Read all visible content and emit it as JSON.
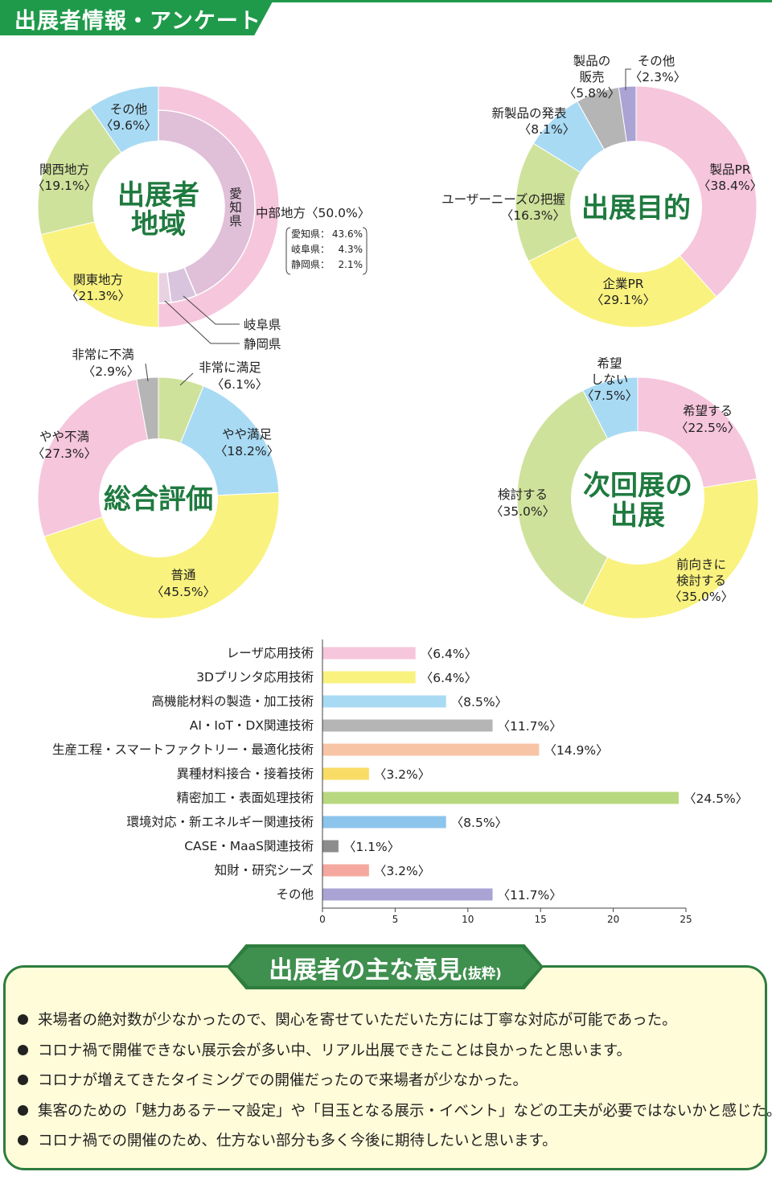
{
  "header": {
    "title": "出展者情報・アンケート"
  },
  "chart_data": [
    {
      "type": "pie",
      "center_title": [
        "出展者",
        "地域"
      ],
      "slices": [
        {
          "label": "中部地方",
          "value": 50.0,
          "pct": "〈50.0%〉",
          "color": "#f6c6dc"
        },
        {
          "label": "関東地方",
          "value": 21.3,
          "pct": "〈21.3%〉",
          "color": "#f9f27e"
        },
        {
          "label": "関西地方",
          "value": 19.1,
          "pct": "〈19.1%〉",
          "color": "#cfe29b"
        },
        {
          "label": "その他",
          "value": 9.6,
          "pct": "〈9.6%〉",
          "color": "#a8daf4"
        }
      ],
      "inner_slices": [
        {
          "label": "愛知県",
          "value": 43.6,
          "color": "#e0bfd8"
        },
        {
          "label": "岐阜県",
          "value": 4.3,
          "color": "#d8c4dc"
        },
        {
          "label": "静岡県",
          "value": 2.1,
          "color": "#e8d2e2"
        }
      ],
      "inner_vertical_label": [
        "愛",
        "知",
        "県"
      ],
      "breakdown": [
        {
          "label": "愛知県：",
          "value": "43.6%"
        },
        {
          "label": "岐阜県：",
          "value": "4.3%"
        },
        {
          "label": "静岡県：",
          "value": "2.1%"
        }
      ],
      "callouts": [
        "岐阜県",
        "静岡県"
      ]
    },
    {
      "type": "pie",
      "center_title": [
        "出展目的"
      ],
      "slices": [
        {
          "label": "製品PR",
          "value": 38.4,
          "pct": "〈38.4%〉",
          "color": "#f6c6dc"
        },
        {
          "label": "企業PR",
          "value": 29.1,
          "pct": "〈29.1%〉",
          "color": "#f9f27e"
        },
        {
          "label": "ユーザーニーズの把握",
          "value": 16.3,
          "pct": "〈16.3%〉",
          "color": "#cfe29b"
        },
        {
          "label": "新製品の発表",
          "value": 8.1,
          "pct": "〈8.1%〉",
          "color": "#a8daf4"
        },
        {
          "label": "製品の販売",
          "value": 5.8,
          "pct": "〈5.8%〉",
          "color": "#b5b5b5"
        },
        {
          "label": "その他",
          "value": 2.3,
          "pct": "〈2.3%〉",
          "color": "#a9a4d4"
        }
      ]
    },
    {
      "type": "pie",
      "center_title": [
        "総合評価"
      ],
      "slices": [
        {
          "label": "非常に満足",
          "value": 6.1,
          "pct": "〈6.1%〉",
          "color": "#cfe29b"
        },
        {
          "label": "やや満足",
          "value": 18.2,
          "pct": "〈18.2%〉",
          "color": "#a8daf4"
        },
        {
          "label": "普通",
          "value": 45.5,
          "pct": "〈45.5%〉",
          "color": "#f9f27e"
        },
        {
          "label": "やや不満",
          "value": 27.3,
          "pct": "〈27.3%〉",
          "color": "#f6c6dc"
        },
        {
          "label": "非常に不満",
          "value": 2.9,
          "pct": "〈2.9%〉",
          "color": "#b5b5b5"
        }
      ]
    },
    {
      "type": "pie",
      "center_title": [
        "次回展の",
        "出展"
      ],
      "slices": [
        {
          "label": "希望する",
          "value": 22.5,
          "pct": "〈22.5%〉",
          "color": "#f6c6dc"
        },
        {
          "label": "前向きに検討する",
          "value": 35.0,
          "pct": "〈35.0%〉",
          "color": "#f9f27e"
        },
        {
          "label": "検討する",
          "value": 35.0,
          "pct": "〈35.0%〉",
          "color": "#cfe29b"
        },
        {
          "label": "希望しない",
          "value": 7.5,
          "pct": "〈7.5%〉",
          "color": "#a8daf4"
        }
      ]
    },
    {
      "type": "bar",
      "orientation": "horizontal",
      "categories": [
        "レーザ応用技術",
        "3Dプリンタ応用技術",
        "高機能材料の製造・加工技術",
        "AI・IoT・DX関連技術",
        "生産工程・スマートファクトリー・最適化技術",
        "異種材料接合・接着技術",
        "精密加工・表面処理技術",
        "環境対応・新エネルギー関連技術",
        "CASE・MaaS関連技術",
        "知財・研究シーズ",
        "その他"
      ],
      "values": [
        6.4,
        6.4,
        8.5,
        11.7,
        14.9,
        3.2,
        24.5,
        8.5,
        1.1,
        3.2,
        11.7
      ],
      "value_labels": [
        "〈6.4%〉",
        "〈6.4%〉",
        "〈8.5%〉",
        "〈11.7%〉",
        "〈14.9%〉",
        "〈3.2%〉",
        "〈24.5%〉",
        "〈8.5%〉",
        "〈1.1%〉",
        "〈3.2%〉",
        "〈11.7%〉"
      ],
      "colors": [
        "#f6c6dc",
        "#f9f27e",
        "#a8daf4",
        "#b5b5b5",
        "#f8c4a6",
        "#f8dc66",
        "#b8d880",
        "#8cc4ec",
        "#8c8c8c",
        "#f4a8a0",
        "#a9a4d4"
      ],
      "xlim": [
        0,
        25
      ],
      "xticks": [
        "0",
        "5",
        "10",
        "15",
        "20",
        "25"
      ]
    }
  ],
  "opinions": {
    "title": "出展者の主な意見",
    "title_suffix": "(抜粋)",
    "items": [
      "来場者の絶対数が少なかったので、関心を寄せていただいた方には丁寧な対応が可能であった。",
      "コロナ禍で開催できない展示会が多い中、リアル出展できたことは良かったと思います。",
      "コロナが増えてきたタイミングでの開催だったので来場者が少なかった。",
      "集客のための「魅力あるテーマ設定」や「目玉となる展示・イベント」などの工夫が必要ではないかと感じた。",
      "コロナ禍での開催のため、仕方ない部分も多く今後に期待したいと思います。"
    ]
  }
}
